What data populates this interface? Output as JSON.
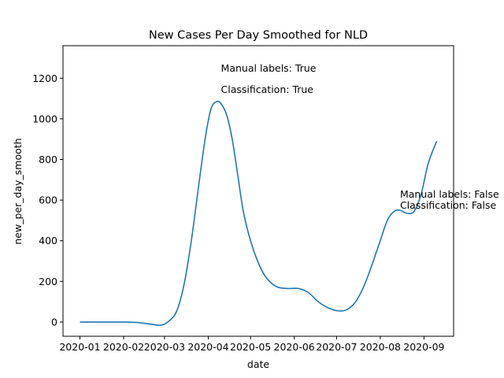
{
  "chart_data": {
    "type": "line",
    "title": "New Cases Per Day Smoothed for NLD",
    "xlabel": "date",
    "ylabel": "new_per_day_smooth",
    "x_range": [
      "2019-12-20",
      "2020-09-22"
    ],
    "ylim": [
      -70,
      1360
    ],
    "x_ticks": [
      "2020-01",
      "2020-02",
      "2020-03",
      "2020-04",
      "2020-05",
      "2020-06",
      "2020-07",
      "2020-08",
      "2020-09"
    ],
    "y_ticks": [
      0,
      200,
      400,
      600,
      800,
      1000,
      1200
    ],
    "grid": false,
    "line_color": "#1f77b4",
    "series": [
      {
        "x": [
          "2020-01-01",
          "2020-01-15",
          "2020-02-01",
          "2020-02-10",
          "2020-02-20",
          "2020-02-28",
          "2020-03-05",
          "2020-03-10",
          "2020-03-15",
          "2020-03-20",
          "2020-03-25",
          "2020-03-30",
          "2020-04-03",
          "2020-04-07",
          "2020-04-10",
          "2020-04-14",
          "2020-04-18",
          "2020-04-22",
          "2020-04-26",
          "2020-05-01",
          "2020-05-06",
          "2020-05-11",
          "2020-05-16",
          "2020-05-21",
          "2020-05-28",
          "2020-06-04",
          "2020-06-11",
          "2020-06-18",
          "2020-06-25",
          "2020-07-02",
          "2020-07-08",
          "2020-07-14",
          "2020-07-20",
          "2020-07-25",
          "2020-07-31",
          "2020-08-06",
          "2020-08-11",
          "2020-08-15",
          "2020-08-20",
          "2020-08-25",
          "2020-08-30",
          "2020-09-04",
          "2020-09-10"
        ],
        "values": [
          0,
          0,
          0,
          -2,
          -10,
          -15,
          10,
          60,
          190,
          400,
          660,
          910,
          1050,
          1085,
          1075,
          1020,
          900,
          720,
          540,
          400,
          300,
          230,
          190,
          170,
          165,
          165,
          145,
          100,
          70,
          55,
          60,
          95,
          170,
          260,
          380,
          500,
          545,
          550,
          535,
          545,
          630,
          780,
          890
        ]
      }
    ],
    "annotations": [
      {
        "text": "Manual labels: True",
        "x": "2020-04-10",
        "y": 1250
      },
      {
        "text": "Classification: True",
        "x": "2020-04-10",
        "y": 1145
      },
      {
        "text": "Manual labels: False",
        "x": "2020-08-15",
        "y": 630
      },
      {
        "text": "Classification: False",
        "x": "2020-08-15",
        "y": 575
      }
    ]
  }
}
